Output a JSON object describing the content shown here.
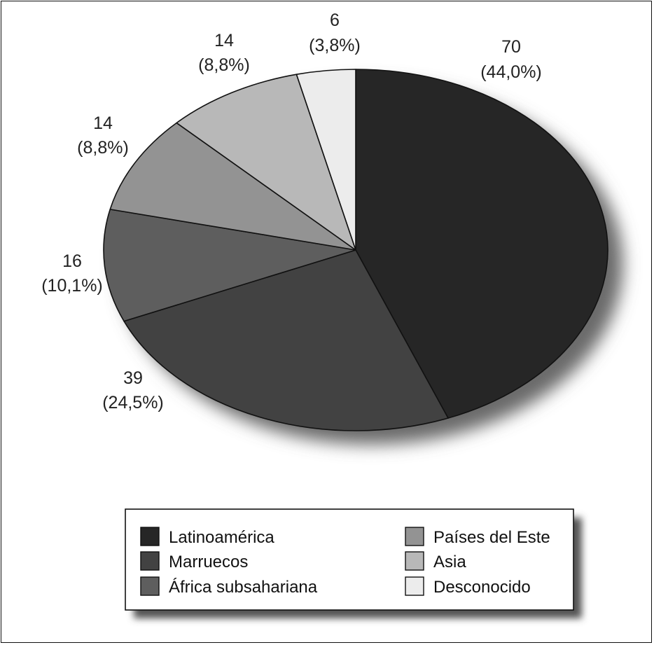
{
  "chart_data": {
    "type": "pie",
    "slices": [
      {
        "name": "Latinoamérica",
        "value": 70,
        "percent": "(44,0%)",
        "color": "#262626"
      },
      {
        "name": "Marruecos",
        "value": 39,
        "percent": "(24,5%)",
        "color": "#424242"
      },
      {
        "name": "África subsahariana",
        "value": 16,
        "percent": "(10,1%)",
        "color": "#5e5e5e"
      },
      {
        "name": "Países del Este",
        "value": 14,
        "percent": "(8,8%)",
        "color": "#939393"
      },
      {
        "name": "Asia",
        "value": 14,
        "percent": "(8,8%)",
        "color": "#b8b8b8"
      },
      {
        "name": "Desconocido",
        "value": 6,
        "percent": "(3,8%)",
        "color": "#ececec"
      }
    ],
    "title": "",
    "legend": "bottom"
  }
}
